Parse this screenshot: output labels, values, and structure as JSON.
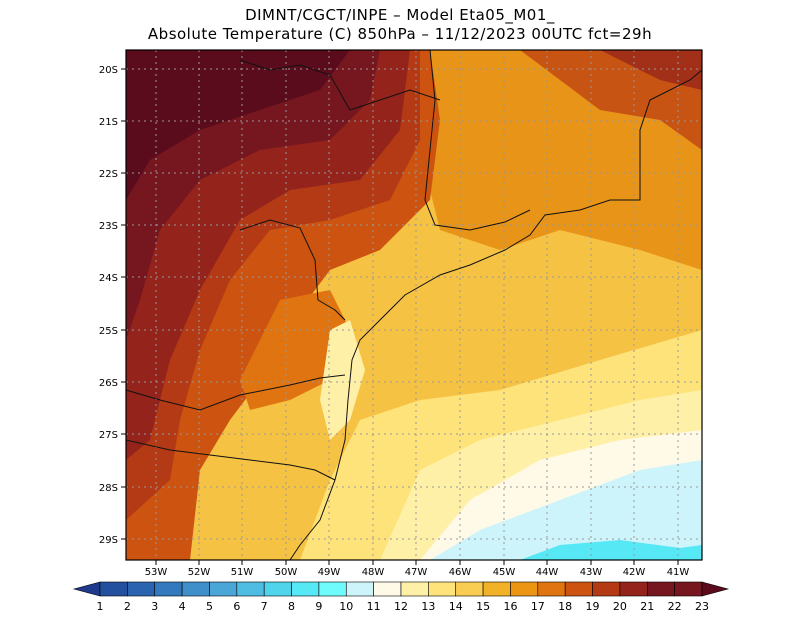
{
  "title": {
    "line1": "DIMNT/CGCT/INPE –  Model Eta05_M01_",
    "line2": "Absolute Temperature (C) 850hPa –  11/12/2023 00UTC fct=29h"
  },
  "map": {
    "lat_labels": [
      "20S",
      "21S",
      "22S",
      "23S",
      "24S",
      "25S",
      "26S",
      "27S",
      "28S",
      "29S"
    ],
    "lon_labels": [
      "53W",
      "52W",
      "51W",
      "50W",
      "49W",
      "48W",
      "47W",
      "46W",
      "45W",
      "44W",
      "43W",
      "42W",
      "41W"
    ],
    "grid": true
  },
  "colorbar": {
    "labels": [
      "1",
      "2",
      "3",
      "4",
      "5",
      "6",
      "7",
      "8",
      "9",
      "10",
      "11",
      "12",
      "13",
      "14",
      "15",
      "16",
      "17",
      "18",
      "19",
      "20",
      "21",
      "22",
      "23"
    ],
    "colors": [
      "#1f3a8c",
      "#22509e",
      "#2a64b0",
      "#3479be",
      "#3f8fcb",
      "#4aa6d6",
      "#4fbde2",
      "#4fd4ec",
      "#56e8f4",
      "#6ffbfb",
      "#cdf3fb",
      "#fff9e8",
      "#fff0a8",
      "#fde37a",
      "#f8cd52",
      "#f2b228",
      "#ec9512",
      "#e07410",
      "#cc5410",
      "#b33a14",
      "#94241b",
      "#761720",
      "#5a0c1c"
    ]
  }
}
